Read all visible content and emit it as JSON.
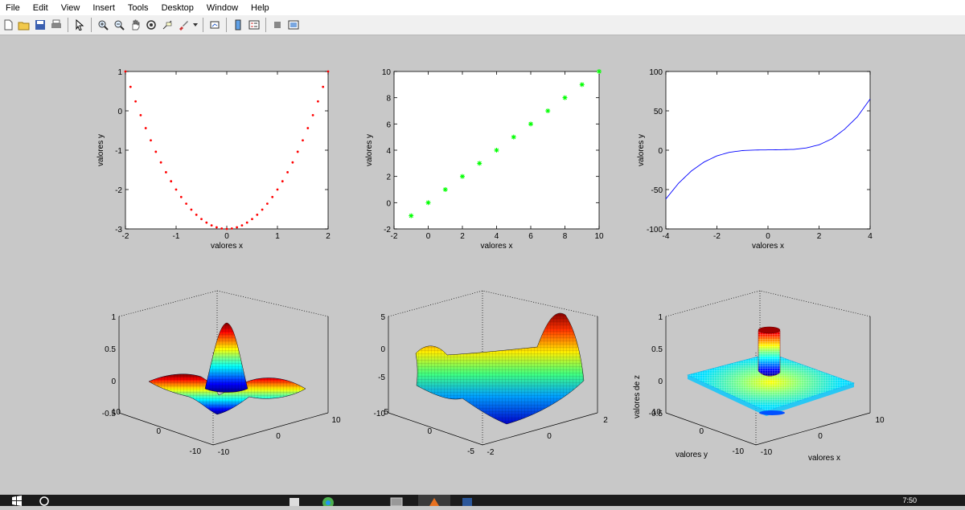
{
  "menu": [
    "File",
    "Edit",
    "View",
    "Insert",
    "Tools",
    "Desktop",
    "Window",
    "Help"
  ],
  "toolbar_icons": [
    "new-file-icon",
    "open-folder-icon",
    "save-icon",
    "print-icon",
    "pointer-icon",
    "zoom-in-icon",
    "zoom-out-icon",
    "pan-hand-icon",
    "rotate-3d-icon",
    "data-cursor-icon",
    "brush-icon",
    "brush-dropdown-icon",
    "link-plot-icon",
    "colorbar-icon",
    "legend-icon",
    "hide-plot-tools-icon",
    "show-plot-tools-icon"
  ],
  "taskbar": {
    "clock": "7:50"
  },
  "colors": {
    "figure_bg": "#c8c8c8",
    "axes_bg": "#ffffff",
    "red_points": "#ff0000",
    "green_points": "#00ff00",
    "blue_line": "#0000ff"
  },
  "chart_data": [
    {
      "type": "scatter",
      "marker": "dot",
      "color": "#ff0000",
      "function": "y = x^2 - 3",
      "x": [
        -2.0,
        -1.9,
        -1.8,
        -1.7,
        -1.6,
        -1.5,
        -1.4,
        -1.3,
        -1.2,
        -1.1,
        -1.0,
        -0.9,
        -0.8,
        -0.7,
        -0.6,
        -0.5,
        -0.4,
        -0.3,
        -0.2,
        -0.1,
        0.0,
        0.1,
        0.2,
        0.3,
        0.4,
        0.5,
        0.6,
        0.7,
        0.8,
        0.9,
        1.0,
        1.1,
        1.2,
        1.3,
        1.4,
        1.5,
        1.6,
        1.7,
        1.8,
        1.9,
        2.0
      ],
      "y": [
        1.0,
        0.61,
        0.24,
        -0.11,
        -0.44,
        -0.75,
        -1.04,
        -1.31,
        -1.56,
        -1.79,
        -2.0,
        -2.19,
        -2.36,
        -2.51,
        -2.64,
        -2.75,
        -2.84,
        -2.91,
        -2.96,
        -2.99,
        -3.0,
        -2.99,
        -2.96,
        -2.91,
        -2.84,
        -2.75,
        -2.64,
        -2.51,
        -2.36,
        -2.19,
        -2.0,
        -1.79,
        -1.56,
        -1.31,
        -1.04,
        -0.75,
        -0.44,
        -0.11,
        0.24,
        0.61,
        1.0
      ],
      "xlabel": "valores x",
      "ylabel": "valores y",
      "xlim": [
        -2,
        2
      ],
      "ylim": [
        -3,
        1
      ],
      "xticks": [
        -2,
        -1,
        0,
        1,
        2
      ],
      "yticks": [
        -3,
        -2,
        -1,
        0,
        1
      ]
    },
    {
      "type": "scatter",
      "marker": "asterisk",
      "color": "#00ff00",
      "x": [
        -1,
        0,
        1,
        2,
        3,
        4,
        5,
        6,
        7,
        8,
        9,
        10
      ],
      "y": [
        -1,
        0,
        1,
        2,
        3,
        4,
        5,
        6,
        7,
        8,
        9,
        10
      ],
      "xlabel": "valores x",
      "ylabel": "valores y",
      "xlim": [
        -2,
        10
      ],
      "ylim": [
        -2,
        10
      ],
      "xticks": [
        -2,
        0,
        2,
        4,
        6,
        8,
        10
      ],
      "yticks": [
        -2,
        0,
        2,
        4,
        6,
        8,
        10
      ]
    },
    {
      "type": "line",
      "color": "#0000ff",
      "x": [
        -4.0,
        -3.5,
        -3.0,
        -2.5,
        -2.0,
        -1.5,
        -1.0,
        -0.5,
        0.0,
        0.5,
        1.0,
        1.5,
        2.0,
        2.5,
        3.0,
        3.5,
        4.0
      ],
      "y": [
        -62,
        -41.9,
        -26.4,
        -15.0,
        -7.2,
        -2.6,
        -0.5,
        0.2,
        0.4,
        0.6,
        1.0,
        2.9,
        6.8,
        14.4,
        26.6,
        42.4,
        65
      ],
      "xlabel": "valores x",
      "ylabel": "valores y",
      "xlim": [
        -4,
        4
      ],
      "ylim": [
        -100,
        100
      ],
      "xticks": [
        -4,
        -2,
        0,
        2,
        4
      ],
      "yticks": [
        -100,
        -50,
        0,
        50,
        100
      ]
    },
    {
      "type": "surface",
      "function": "sin(r)/r",
      "xlim": [
        -10,
        10
      ],
      "ylim": [
        -10,
        10
      ],
      "zlim": [
        -0.5,
        1
      ],
      "xticks": [
        -10,
        0,
        10
      ],
      "yticks": [
        -10,
        0,
        10
      ],
      "zticks": [
        -0.5,
        0,
        0.5,
        1
      ],
      "xlabel": "",
      "ylabel": "",
      "zlabel": ""
    },
    {
      "type": "surface",
      "function": "saddle z = x^2 - y^2",
      "xlim": [
        -2,
        2
      ],
      "ylim": [
        -5,
        5
      ],
      "zlim": [
        -10,
        5
      ],
      "xticks": [
        -2,
        0,
        2
      ],
      "yticks": [
        -5,
        0,
        5
      ],
      "zticks": [
        -10,
        -5,
        0,
        5
      ],
      "xlabel": "",
      "ylabel": "",
      "zlabel": ""
    },
    {
      "type": "surface",
      "function": "mesh with central peak",
      "xlim": [
        -10,
        10
      ],
      "ylim": [
        -10,
        10
      ],
      "zlim": [
        -0.5,
        1
      ],
      "xticks": [
        -10,
        0,
        10
      ],
      "yticks": [
        -10,
        0,
        10
      ],
      "zticks": [
        -0.5,
        0,
        0.5,
        1
      ],
      "xlabel": "valores x",
      "ylabel": "valores y",
      "zlabel": "valores de z"
    }
  ]
}
